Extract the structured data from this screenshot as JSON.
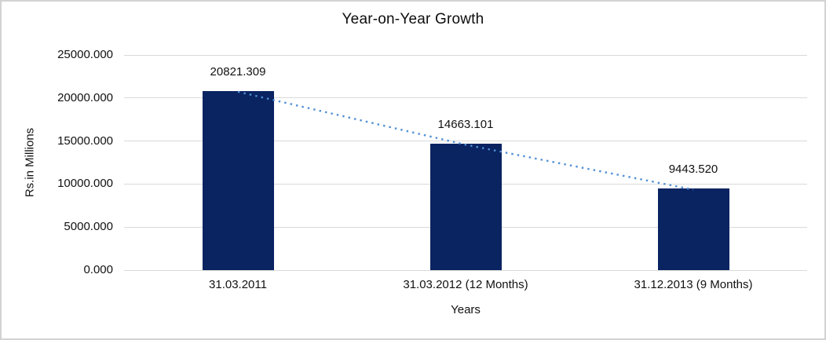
{
  "window": {
    "background_color": "#ffffff",
    "border_color": "#d2d2d2"
  },
  "chart_data": {
    "type": "bar",
    "title": "Year-on-Year Growth",
    "xlabel": "Years",
    "ylabel": "Rs.in Millions",
    "categories": [
      "31.03.2011",
      "31.03.2012 (12 Months)",
      "31.12.2013 (9 Months)"
    ],
    "values": [
      20821.309,
      14663.101,
      9443.52
    ],
    "data_labels": [
      "20821.309",
      "14663.101",
      "9443.520"
    ],
    "ylim": [
      0,
      25000
    ],
    "ytick_step": 5000,
    "ytick_labels": [
      "0.000",
      "5000.000",
      "10000.000",
      "15000.000",
      "20000.000",
      "25000.000"
    ],
    "grid": "horizontal",
    "legend": "none",
    "bar_color": "#0a2361",
    "gridline_color": "#d9d9d9",
    "trendline": {
      "style": "dotted",
      "color": "#4f8fd5",
      "description": "dotted trendline connecting the tops of the three bars"
    }
  }
}
